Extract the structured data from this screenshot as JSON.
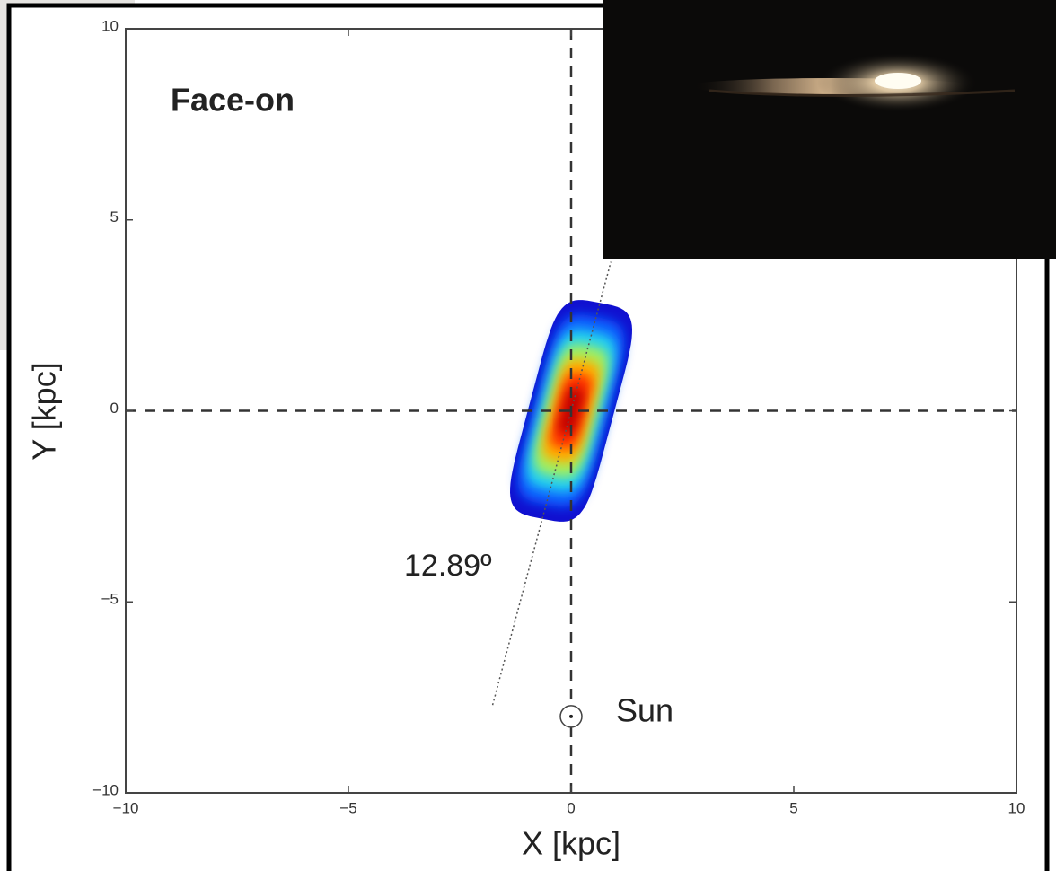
{
  "chart_data": {
    "type": "bar-density",
    "annotation": "Face-on",
    "xlabel": "X [kpc]",
    "ylabel": "Y [kpc]",
    "xlim": [
      -10,
      10
    ],
    "ylim": [
      -10,
      10
    ],
    "xticks": [
      {
        "value": -10,
        "label": "−10"
      },
      {
        "value": -5,
        "label": "−5"
      },
      0,
      5,
      10
    ],
    "yticks": [
      {
        "value": -10,
        "label": "−10"
      },
      {
        "value": -5,
        "label": "−5"
      },
      0,
      5,
      10
    ],
    "reference_lines": {
      "x": 0,
      "y": 0
    },
    "bar": {
      "angle": 12.89,
      "angle_label": "12.89º",
      "half_length": 2.9,
      "half_width": 0.95,
      "colors": [
        "#1010d0",
        "#1060ff",
        "#20d0f0",
        "#a0f060",
        "#ffb000",
        "#ff3000",
        "#c00000"
      ]
    },
    "sun": {
      "x": 0,
      "y": -8,
      "label": "Sun"
    }
  }
}
